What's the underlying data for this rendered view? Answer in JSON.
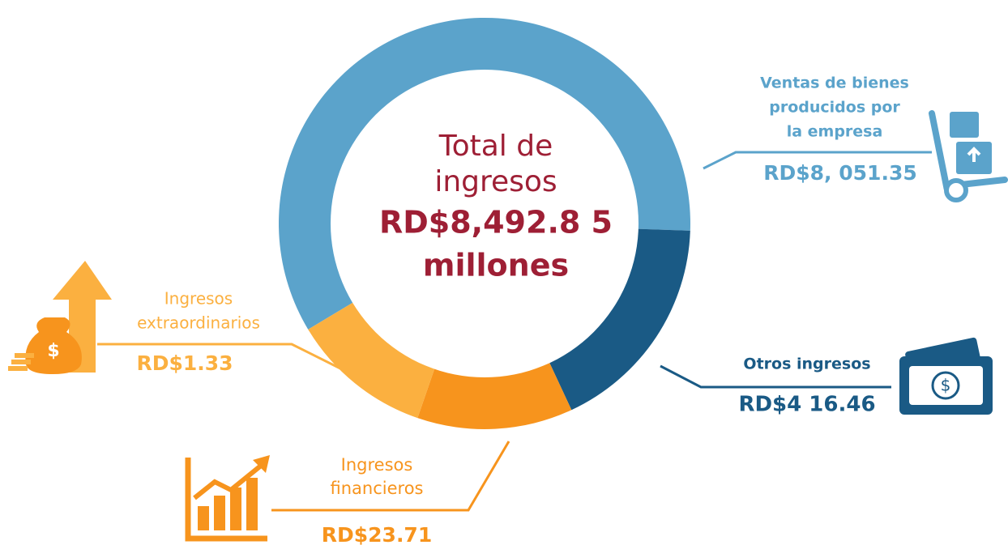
{
  "center": {
    "title_lines": [
      "Total de",
      "ingresos"
    ],
    "value_lines": [
      "RD$8,492.8 5",
      "millones"
    ]
  },
  "items": [
    {
      "label_lines": [
        "Ventas de bienes",
        "producidos por",
        "la empresa"
      ],
      "value": "RD$8, 051.35"
    },
    {
      "label_lines": [
        "Otros ingresos"
      ],
      "value": "RD$4 16.46"
    },
    {
      "label_lines": [
        "Ingresos",
        "financieros"
      ],
      "value": "RD$23.71"
    },
    {
      "label_lines": [
        "Ingresos",
        "extraordinarios"
      ],
      "value": "RD$1.33"
    }
  ]
}
